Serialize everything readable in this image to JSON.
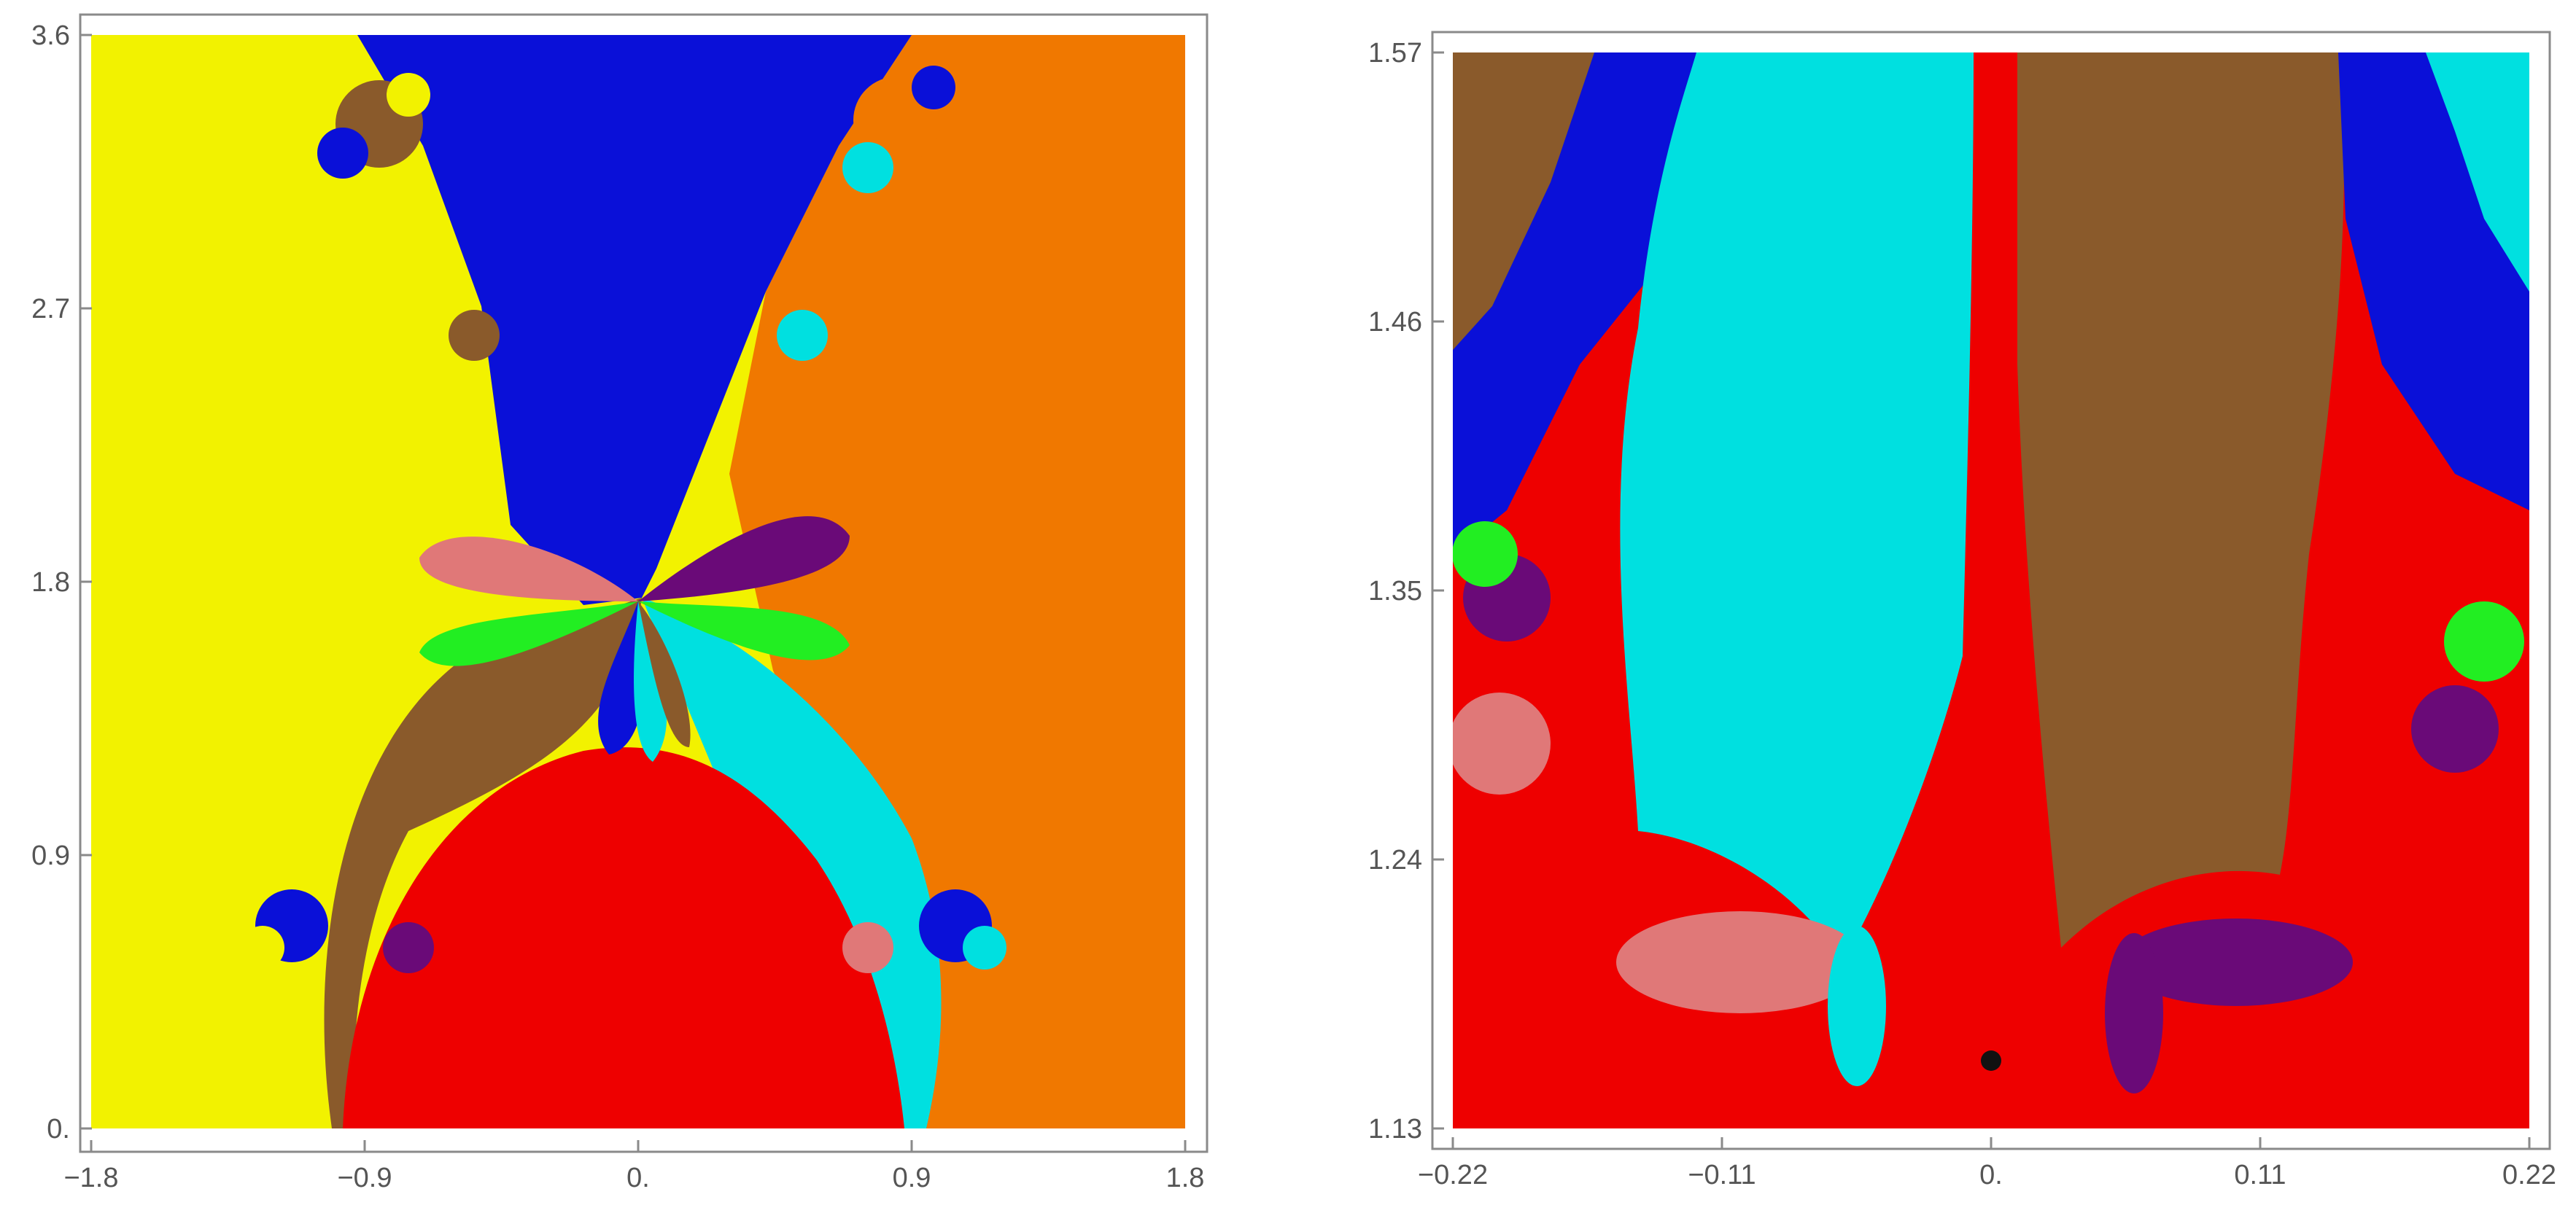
{
  "chart_data": [
    {
      "type": "heatmap",
      "description_kind": "basins-of-attraction",
      "xlim": [
        -1.8,
        1.8
      ],
      "ylim": [
        0,
        3.6
      ],
      "x_ticks": [
        -1.8,
        -0.9,
        0,
        0.9,
        1.8
      ],
      "y_ticks": [
        0,
        0.9,
        1.8,
        2.7,
        3.6
      ],
      "x_tick_labels": [
        "-1.8",
        "-0.9",
        "0.",
        "0.9",
        "1.8"
      ],
      "y_tick_labels": [
        "0.",
        "0.9",
        "1.8",
        "2.7",
        "3.6"
      ],
      "grid": false,
      "title": "",
      "xlabel": "",
      "ylabel": ""
    },
    {
      "type": "heatmap",
      "description_kind": "basins-of-attraction",
      "xlim": [
        -0.22,
        0.22
      ],
      "ylim": [
        1.13,
        1.57
      ],
      "x_ticks": [
        -0.22,
        -0.11,
        0,
        0.11,
        0.22
      ],
      "y_ticks": [
        1.13,
        1.24,
        1.35,
        1.46,
        1.57
      ],
      "x_tick_labels": [
        "-0.22",
        "-0.11",
        "0.",
        "0.11",
        "0.22"
      ],
      "y_tick_labels": [
        "1.13",
        "1.24",
        "1.35",
        "1.46",
        "1.57"
      ],
      "grid": false,
      "title": "",
      "xlabel": "",
      "ylabel": ""
    }
  ],
  "colors": {
    "yellow": "#f2f200",
    "blue": "#0a10d8",
    "orange": "#f07800",
    "red": "#ee0000",
    "cyan": "#00e0e0",
    "brown": "#8a5a2b",
    "pink": "#e07878",
    "green": "#22ee22",
    "purple": "#6a0a78",
    "black": "#111111"
  }
}
